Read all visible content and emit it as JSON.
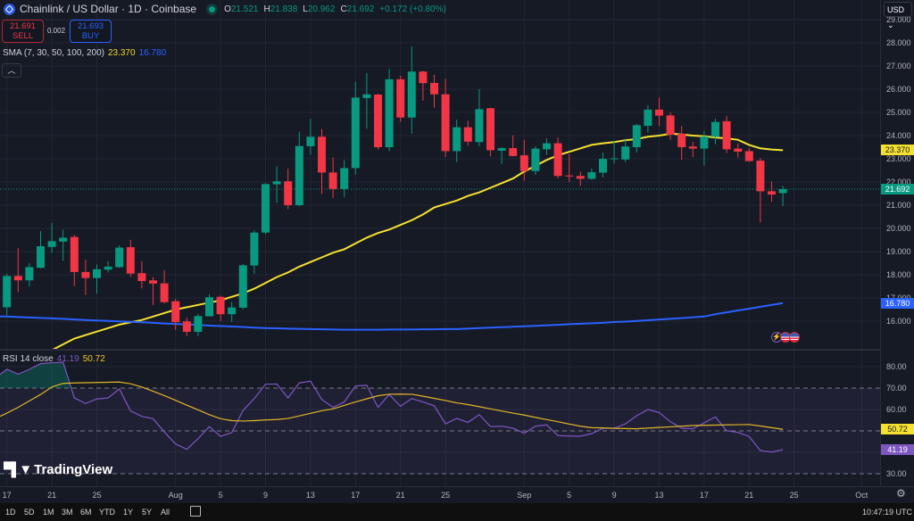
{
  "header": {
    "title": "Chainlink / US Dollar · 1D · Coinbase",
    "ohlc": {
      "o_label": "O",
      "o": "21.521",
      "h_label": "H",
      "h": "21.838",
      "l_label": "L",
      "l": "20.962",
      "c_label": "C",
      "c": "21.692",
      "change": "+0.172 (+0.80%)"
    }
  },
  "trade": {
    "sell_price": "21.691",
    "sell_label": "SELL",
    "spread": "0.002",
    "buy_price": "21.693",
    "buy_label": "BUY"
  },
  "sma_legend": {
    "label": "SMA (7, 30, 50, 100, 200)",
    "value1": "23.370",
    "value2": "16.780"
  },
  "collapse_icon": "chevron-up",
  "rsi_legend": {
    "label": "RSI 14 close",
    "value1": "41.19",
    "value2": "50.72"
  },
  "currency": "USD",
  "watermark": "TradingView",
  "price_axis": {
    "ticks": [
      "29.000",
      "28.000",
      "27.000",
      "26.000",
      "25.000",
      "24.000",
      "23.000",
      "22.000",
      "21.000",
      "20.000",
      "19.000",
      "18.000",
      "17.000",
      "16.000"
    ],
    "badges": [
      {
        "text": "23.370",
        "value": 23.37,
        "color": "#f5e130",
        "fg": "#131722"
      },
      {
        "text": "21.692",
        "value": 21.692,
        "color": "#089981",
        "fg": "#ffffff"
      },
      {
        "text": "16.780",
        "value": 16.78,
        "color": "#2962ff",
        "fg": "#ffffff"
      }
    ]
  },
  "rsi_axis": {
    "ticks": [
      "80.00",
      "70.00",
      "60.00",
      "30.00"
    ],
    "badges": [
      {
        "text": "50.72",
        "value": 50.72,
        "color": "#f5e130",
        "fg": "#131722"
      },
      {
        "text": "41.19",
        "value": 41.19,
        "color": "#7e57c2",
        "fg": "#ffffff"
      }
    ]
  },
  "time_axis": [
    {
      "label": "17",
      "date": "Jul 17"
    },
    {
      "label": "21",
      "date": "Jul 21"
    },
    {
      "label": "25",
      "date": "Jul 25"
    },
    {
      "label": "Aug",
      "date": "Aug 1"
    },
    {
      "label": "5",
      "date": "Aug 5"
    },
    {
      "label": "9",
      "date": "Aug 9"
    },
    {
      "label": "13",
      "date": "Aug 13"
    },
    {
      "label": "17",
      "date": "Aug 17"
    },
    {
      "label": "21",
      "date": "Aug 21"
    },
    {
      "label": "25",
      "date": "Aug 25"
    },
    {
      "label": "Sep",
      "date": "Sep 1"
    },
    {
      "label": "5",
      "date": "Sep 5"
    },
    {
      "label": "9",
      "date": "Sep 9"
    },
    {
      "label": "13",
      "date": "Sep 13"
    },
    {
      "label": "17",
      "date": "Sep 17"
    },
    {
      "label": "21",
      "date": "Sep 21"
    },
    {
      "label": "25",
      "date": "Sep 25"
    },
    {
      "label": "Oct",
      "date": "Oct 1"
    }
  ],
  "bottom_bar": {
    "ranges": [
      "1D",
      "5D",
      "1M",
      "3M",
      "6M",
      "YTD",
      "1Y",
      "5Y",
      "All"
    ],
    "clock": "10:47:19 UTC"
  },
  "colors": {
    "up": "#089981",
    "down": "#f23645",
    "sma_fast": "#f5e130",
    "sma_slow": "#2962ff",
    "rsi": "#7e57c2",
    "rsi_ma": "#e0b526",
    "background": "#161a25",
    "grid": "#232632"
  },
  "chart_data": {
    "type": "candlestick",
    "ylim": [
      16,
      28
    ],
    "columns": [
      "date",
      "open",
      "high",
      "low",
      "close"
    ],
    "candles": [
      [
        "Jul 17",
        16.6,
        18.05,
        16.26,
        17.95
      ],
      [
        "Jul 18",
        17.95,
        19.14,
        17.26,
        17.76
      ],
      [
        "Jul 19",
        17.76,
        18.5,
        17.51,
        18.33
      ],
      [
        "Jul 20",
        18.3,
        19.88,
        18.28,
        19.23
      ],
      [
        "Jul 21",
        19.2,
        20.23,
        18.95,
        19.45
      ],
      [
        "Jul 22",
        19.43,
        19.95,
        18.6,
        19.6
      ],
      [
        "Jul 23",
        19.63,
        19.72,
        17.51,
        18.12
      ],
      [
        "Jul 24",
        18.12,
        18.65,
        17.13,
        17.86
      ],
      [
        "Jul 25",
        17.86,
        18.44,
        17.19,
        18.24
      ],
      [
        "Jul 26",
        18.22,
        18.59,
        18.1,
        18.35
      ],
      [
        "Jul 27",
        18.33,
        19.27,
        18.3,
        19.17
      ],
      [
        "Jul 28",
        19.19,
        19.51,
        17.9,
        18.05
      ],
      [
        "Jul 29",
        18.07,
        18.59,
        17.41,
        17.73
      ],
      [
        "Jul 30",
        17.76,
        17.9,
        16.7,
        17.62
      ],
      [
        "Jul 31",
        17.63,
        18.19,
        16.77,
        16.82
      ],
      [
        "Aug 1",
        16.86,
        16.96,
        15.62,
        15.96
      ],
      [
        "Aug 2",
        15.99,
        16.15,
        15.36,
        15.54
      ],
      [
        "Aug 3",
        15.54,
        16.32,
        15.36,
        16.22
      ],
      [
        "Aug 4",
        16.21,
        17.15,
        16.2,
        17.03
      ],
      [
        "Aug 5",
        17.05,
        17.1,
        16.0,
        16.3
      ],
      [
        "Aug 6",
        16.3,
        16.83,
        15.97,
        16.59
      ],
      [
        "Aug 7",
        16.58,
        18.46,
        16.51,
        18.41
      ],
      [
        "Aug 8",
        18.4,
        19.91,
        18.05,
        19.82
      ],
      [
        "Aug 9",
        19.82,
        21.95,
        19.75,
        21.91
      ],
      [
        "Aug 10",
        21.9,
        22.67,
        21.1,
        22.03
      ],
      [
        "Aug 11",
        22.03,
        22.58,
        20.83,
        21.0
      ],
      [
        "Aug 12",
        21.0,
        24.17,
        20.95,
        23.55
      ],
      [
        "Aug 13",
        23.54,
        24.72,
        23.18,
        23.95
      ],
      [
        "Aug 14",
        23.95,
        24.29,
        21.48,
        22.41
      ],
      [
        "Aug 15",
        22.41,
        23.05,
        21.31,
        21.7
      ],
      [
        "Aug 16",
        21.7,
        22.95,
        21.36,
        22.6
      ],
      [
        "Aug 17",
        22.6,
        26.32,
        22.32,
        25.64
      ],
      [
        "Aug 18",
        25.62,
        26.7,
        24.3,
        25.78
      ],
      [
        "Aug 19",
        25.77,
        25.8,
        23.4,
        23.5
      ],
      [
        "Aug 20",
        23.5,
        26.87,
        23.33,
        26.43
      ],
      [
        "Aug 21",
        26.43,
        26.58,
        24.59,
        24.78
      ],
      [
        "Aug 22",
        24.78,
        27.85,
        24.08,
        26.76
      ],
      [
        "Aug 23",
        26.76,
        26.8,
        25.51,
        26.26
      ],
      [
        "Aug 24",
        26.27,
        26.62,
        25.2,
        25.78
      ],
      [
        "Aug 25",
        25.78,
        26.45,
        23.08,
        23.33
      ],
      [
        "Aug 26",
        23.33,
        24.69,
        22.86,
        24.36
      ],
      [
        "Aug 27",
        24.36,
        24.64,
        23.57,
        23.74
      ],
      [
        "Aug 28",
        23.72,
        26.0,
        23.54,
        25.14
      ],
      [
        "Aug 29",
        25.18,
        25.2,
        23.1,
        23.37
      ],
      [
        "Aug 30",
        23.35,
        23.5,
        22.77,
        23.46
      ],
      [
        "Aug 31",
        23.46,
        24.01,
        23.1,
        23.12
      ],
      [
        "Sep 1",
        23.15,
        23.82,
        22.05,
        22.47
      ],
      [
        "Sep 2",
        22.47,
        23.54,
        22.31,
        23.44
      ],
      [
        "Sep 3",
        23.41,
        23.87,
        23.18,
        23.67
      ],
      [
        "Sep 4",
        23.67,
        23.92,
        22.15,
        22.26
      ],
      [
        "Sep 5",
        22.28,
        23.2,
        22.0,
        22.26
      ],
      [
        "Sep 6",
        22.26,
        22.45,
        21.83,
        22.14
      ],
      [
        "Sep 7",
        22.14,
        22.58,
        22.1,
        22.42
      ],
      [
        "Sep 8",
        22.4,
        23.27,
        22.2,
        23.0
      ],
      [
        "Sep 9",
        22.98,
        23.77,
        22.8,
        23.02
      ],
      [
        "Sep 10",
        22.97,
        23.87,
        22.86,
        23.53
      ],
      [
        "Sep 11",
        23.5,
        24.5,
        23.27,
        24.45
      ],
      [
        "Sep 12",
        24.42,
        25.31,
        24.14,
        25.12
      ],
      [
        "Sep 13",
        25.12,
        25.64,
        24.42,
        24.86
      ],
      [
        "Sep 14",
        24.87,
        25.0,
        23.82,
        24.04
      ],
      [
        "Sep 15",
        24.08,
        24.42,
        22.95,
        23.5
      ],
      [
        "Sep 16",
        23.53,
        23.73,
        23.08,
        23.44
      ],
      [
        "Sep 17",
        23.44,
        24.2,
        22.7,
        23.96
      ],
      [
        "Sep 18",
        23.95,
        24.72,
        23.63,
        24.59
      ],
      [
        "Sep 19",
        24.62,
        24.85,
        23.24,
        23.41
      ],
      [
        "Sep 20",
        23.44,
        23.67,
        23.05,
        23.31
      ],
      [
        "Sep 21",
        23.33,
        23.46,
        22.88,
        22.9
      ],
      [
        "Sep 22",
        22.92,
        23.03,
        20.26,
        21.6
      ],
      [
        "Sep 23",
        21.6,
        22.03,
        21.15,
        21.46
      ],
      [
        "Sep 24",
        21.521,
        21.838,
        20.962,
        21.692
      ]
    ],
    "sma_series": [
      {
        "color": "#f5e130",
        "values": [
          null,
          null,
          null,
          null,
          14.75,
          15.0,
          15.25,
          15.4,
          15.55,
          15.7,
          15.85,
          15.95,
          16.05,
          16.2,
          16.35,
          16.5,
          16.6,
          16.7,
          16.8,
          16.9,
          17.05,
          17.2,
          17.4,
          17.65,
          17.9,
          18.1,
          18.35,
          18.55,
          18.75,
          18.95,
          19.1,
          19.35,
          19.6,
          19.8,
          19.95,
          20.15,
          20.35,
          20.6,
          20.9,
          21.05,
          21.2,
          21.4,
          21.55,
          21.75,
          21.95,
          22.15,
          22.45,
          22.7,
          22.95,
          23.15,
          23.3,
          23.45,
          23.6,
          23.67,
          23.72,
          23.8,
          23.85,
          23.95,
          24.0,
          24.08,
          24.05,
          24.0,
          23.97,
          23.92,
          23.88,
          23.82,
          23.6,
          23.45,
          23.4,
          23.37
        ]
      },
      {
        "color": "#2962ff",
        "values": [
          16.2,
          16.18,
          16.16,
          16.14,
          16.12,
          16.1,
          16.07,
          16.05,
          16.03,
          16.01,
          15.99,
          15.97,
          15.95,
          15.93,
          15.9,
          15.88,
          15.86,
          15.84,
          15.81,
          15.79,
          15.77,
          15.75,
          15.72,
          15.7,
          15.69,
          15.68,
          15.67,
          15.66,
          15.65,
          15.64,
          15.63,
          15.63,
          15.63,
          15.63,
          15.64,
          15.64,
          15.64,
          15.65,
          15.65,
          15.66,
          15.66,
          15.68,
          15.7,
          15.72,
          15.74,
          15.76,
          15.78,
          15.8,
          15.82,
          15.84,
          15.87,
          15.89,
          15.91,
          15.93,
          15.96,
          15.98,
          16.01,
          16.04,
          16.07,
          16.1,
          16.13,
          16.17,
          16.2,
          16.3,
          16.38,
          16.46,
          16.54,
          16.62,
          16.7,
          16.78
        ]
      }
    ],
    "rsi": {
      "ylim": [
        30,
        80
      ],
      "overbought": 70,
      "middle": 50,
      "oversold": 30,
      "values": [
        78.75,
        76.5,
        78.75,
        81.4,
        81.8,
        82.1,
        65.4,
        62.8,
        64.9,
        65.4,
        69.6,
        59.3,
        56.8,
        55.7,
        49.5,
        43.9,
        41.4,
        46.4,
        52.0,
        47.4,
        49.2,
        59.6,
        65.1,
        71.8,
        71.9,
        65.4,
        72.4,
        73.2,
        64.7,
        61.0,
        63.5,
        71.0,
        71.3,
        61.0,
        67.0,
        61.5,
        65.1,
        63.5,
        61.7,
        53.3,
        55.8,
        54.0,
        57.6,
        52.0,
        52.2,
        51.25,
        48.9,
        52.2,
        52.8,
        47.8,
        47.6,
        47.5,
        48.75,
        51.25,
        51.25,
        53.3,
        57.1,
        60.0,
        58.6,
        54.3,
        51.25,
        51.0,
        53.75,
        56.5,
        50.1,
        49.3,
        47.4,
        40.8,
        40.1,
        41.19
      ],
      "ma_values": [
        58.3,
        61,
        64,
        67,
        70.5,
        72.2,
        72.4,
        72.5,
        72.6,
        72.7,
        72.8,
        72,
        70.5,
        68.5,
        66.5,
        64.3,
        62,
        59.8,
        57.6,
        55.7,
        54.8,
        54.6,
        54.8,
        55.1,
        55.3,
        55.8,
        57,
        58.2,
        59.4,
        60.3,
        61.9,
        63.5,
        65,
        66.4,
        67.1,
        67.2,
        67.1,
        66.2,
        65.2,
        64.2,
        63.1,
        62.3,
        61.3,
        60.3,
        59.3,
        58.3,
        57.4,
        56.3,
        55.3,
        54.3,
        53.2,
        52.2,
        51.5,
        51.4,
        51.2,
        51.1,
        51,
        51.3,
        51.6,
        51.9,
        52.2,
        52.5,
        52.6,
        52.7,
        52.8,
        52.9,
        53.0,
        52.3,
        51.5,
        50.72
      ]
    }
  }
}
